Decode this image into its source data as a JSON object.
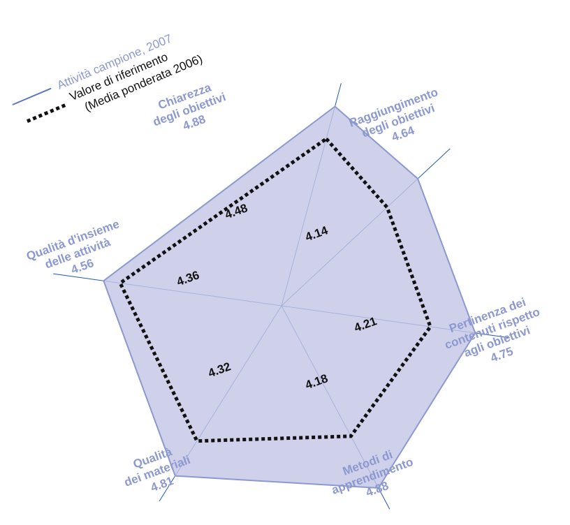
{
  "chart_data": {
    "type": "radar",
    "categories": [
      "Chiarezza degli obiettivi",
      "Raggiungimento degli obiettivi",
      "Pertinenza dei contenuti rispetto agli obiettivi",
      "Metodi di apprendimento",
      "Qualità dei materiali",
      "Qualità d'insieme delle attività"
    ],
    "axis_labels": [
      [
        "Chiarezza",
        "degli obiettivi"
      ],
      [
        "Raggiungimento",
        "degli obiettivi"
      ],
      [
        "Pertinenza dei",
        "contenuti rispetto",
        "agli obiettivi"
      ],
      [
        "Metodi di",
        "apprendimento"
      ],
      [
        "Qualità",
        "dei materiali"
      ],
      [
        "Qualità d'insieme",
        "delle attività"
      ]
    ],
    "series": [
      {
        "name": "Attività campione, 2007",
        "values": [
          4.88,
          4.64,
          4.75,
          4.88,
          4.81,
          4.56
        ],
        "color": "#8c98d0",
        "fill": "#c3c7e4"
      },
      {
        "name": "Valore di riferimento (Media ponderata 2006)",
        "values": [
          4.48,
          4.14,
          4.21,
          4.18,
          4.32,
          4.36
        ],
        "color": "#111111"
      }
    ],
    "value_labels_a": [
      "4.88",
      "4.64",
      "4.75",
      "4.88",
      "4.81",
      "4.56"
    ],
    "value_labels_b": [
      "4.48",
      "4.14",
      "4.21",
      "4.18",
      "4.32",
      "4.36"
    ],
    "rlim": [
      3,
      5
    ],
    "legend": {
      "placement": "top-left",
      "entry_a": "Attività campione, 2007",
      "entry_b_line1": "Valore di riferimento",
      "entry_b_line2": "(Media ponderata 2006)"
    },
    "axis_color": "#1f56b0"
  }
}
